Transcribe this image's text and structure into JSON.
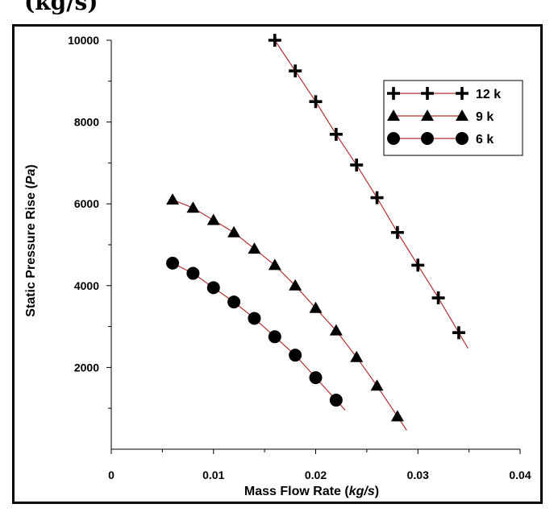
{
  "header_fragment": "(kg/s)",
  "chart_data": {
    "type": "line",
    "title": "",
    "xlabel_parts": [
      {
        "text": "Mass Flow Rate (",
        "italic": false
      },
      {
        "text": "kg/s",
        "italic": true
      },
      {
        "text": ")",
        "italic": false
      }
    ],
    "ylabel_parts": [
      {
        "text": "Static Pressure Rise (",
        "italic": false
      },
      {
        "text": "Pa",
        "italic": true
      },
      {
        "text": ")",
        "italic": false
      }
    ],
    "xlim": [
      0,
      0.04
    ],
    "ylim": [
      0,
      10000
    ],
    "xticks": [
      0,
      0.01,
      0.02,
      0.03,
      0.04
    ],
    "xtick_labels": [
      "0",
      "0.01",
      "0.02",
      "0.03",
      "0.04"
    ],
    "yticks": [
      2000,
      4000,
      6000,
      8000,
      10000
    ],
    "ytick_labels": [
      "2000",
      "4000",
      "6000",
      "8000",
      "10000"
    ],
    "grid": false,
    "legend_position": "top-right",
    "line_color": "#b03030",
    "marker_color": "#000000",
    "series": [
      {
        "name": "12 k",
        "marker": "plus",
        "x": [
          0.016,
          0.018,
          0.02,
          0.022,
          0.024,
          0.026,
          0.028,
          0.03,
          0.032,
          0.034
        ],
        "y": [
          10000,
          9250,
          8500,
          7700,
          6950,
          6150,
          5300,
          4500,
          3700,
          2850
        ]
      },
      {
        "name": "9 k",
        "marker": "triangle",
        "x": [
          0.006,
          0.008,
          0.01,
          0.012,
          0.014,
          0.016,
          0.018,
          0.02,
          0.022,
          0.024,
          0.026,
          0.028
        ],
        "y": [
          6100,
          5900,
          5600,
          5300,
          4900,
          4500,
          4000,
          3450,
          2900,
          2250,
          1550,
          800
        ]
      },
      {
        "name": "6 k",
        "marker": "circle",
        "x": [
          0.006,
          0.008,
          0.01,
          0.012,
          0.014,
          0.016,
          0.018,
          0.02,
          0.022
        ],
        "y": [
          4550,
          4300,
          3950,
          3600,
          3200,
          2750,
          2300,
          1750,
          1200
        ]
      }
    ]
  }
}
